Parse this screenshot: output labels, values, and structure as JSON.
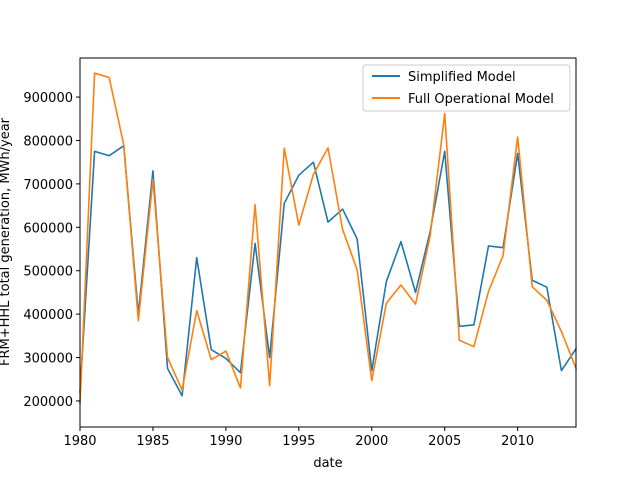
{
  "chart_data": {
    "type": "line",
    "xlabel": "date",
    "ylabel": "FRM+HHL total generation, MWh/year",
    "xlim": [
      1980,
      2014
    ],
    "ylim": [
      140000,
      990000
    ],
    "x_ticks": [
      1980,
      1985,
      1990,
      1995,
      2000,
      2005,
      2010
    ],
    "y_ticks": [
      200000,
      300000,
      400000,
      500000,
      600000,
      700000,
      800000,
      900000
    ],
    "x_tick_labels": [
      "1980",
      "1985",
      "1990",
      "1995",
      "2000",
      "2005",
      "2010"
    ],
    "y_tick_labels": [
      "200000",
      "300000",
      "400000",
      "500000",
      "600000",
      "700000",
      "800000",
      "900000"
    ],
    "grid": false,
    "legend_position": "top-right",
    "x": [
      1980,
      1981,
      1982,
      1983,
      1984,
      1985,
      1986,
      1987,
      1988,
      1989,
      1990,
      1991,
      1992,
      1993,
      1994,
      1995,
      1996,
      1997,
      1998,
      1999,
      2000,
      2001,
      2002,
      2003,
      2004,
      2005,
      2006,
      2007,
      2008,
      2009,
      2010,
      2011,
      2012,
      2013,
      2014
    ],
    "series": [
      {
        "name": "Simplified Model",
        "color": "#1f77b4",
        "values": [
          220000,
          775000,
          765000,
          788000,
          400000,
          730000,
          275000,
          212000,
          530000,
          318000,
          298000,
          265000,
          563000,
          300000,
          655000,
          720000,
          750000,
          612000,
          642000,
          573000,
          270000,
          475000,
          567000,
          450000,
          590000,
          775000,
          372000,
          375000,
          557000,
          553000,
          770000,
          478000,
          462000,
          270000,
          320000
        ]
      },
      {
        "name": "Full Operational Model",
        "color": "#ff7f0e",
        "values": [
          195000,
          955000,
          945000,
          790000,
          385000,
          710000,
          300000,
          225000,
          408000,
          295000,
          315000,
          230000,
          652000,
          235000,
          782000,
          605000,
          722000,
          783000,
          595000,
          502000,
          247000,
          425000,
          467000,
          423000,
          580000,
          862000,
          340000,
          325000,
          452000,
          535000,
          808000,
          463000,
          432000,
          360000,
          275000
        ]
      }
    ]
  }
}
